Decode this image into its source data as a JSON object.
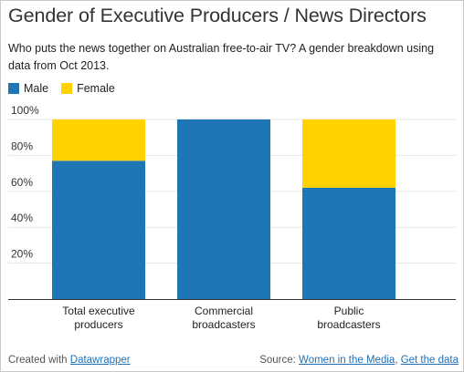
{
  "chart_data": {
    "type": "bar",
    "stacked": true,
    "title": "Gender of Executive Producers / News Directors",
    "subtitle": "Who puts the news together on Australian free-to-air TV? A gender breakdown using data from Oct 2013.",
    "categories": [
      [
        "Total executive",
        "producers"
      ],
      [
        "Commercial",
        "broadcasters"
      ],
      [
        "Public",
        "broadcasters"
      ]
    ],
    "series": [
      {
        "name": "Male",
        "color": "#1f76b4",
        "values": [
          77,
          100,
          62
        ]
      },
      {
        "name": "Female",
        "color": "#ffd200",
        "values": [
          23,
          0,
          38
        ]
      }
    ],
    "ylim": [
      0,
      100
    ],
    "yticks": [
      "20%",
      "40%",
      "60%",
      "80%",
      "100%"
    ],
    "ytick_values": [
      20,
      40,
      60,
      80,
      100
    ],
    "grid": true,
    "legend_position": "top-left"
  },
  "footer": {
    "created_prefix": "Created with ",
    "created_link": "Datawrapper",
    "source_prefix": "Source: ",
    "source_link": "Women in the Media",
    "separator": ", ",
    "data_link": "Get the data"
  }
}
